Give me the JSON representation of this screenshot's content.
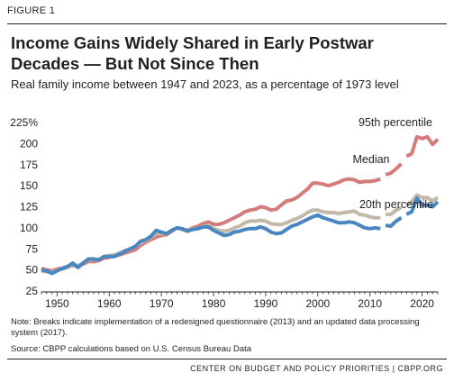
{
  "figure_label": "FIGURE 1",
  "title": "Income Gains Widely Shared in Early Postwar Decades — But Not Since Then",
  "subtitle": "Real family income between 1947 and 2023, as a percentage of 1973 level",
  "note": "Note: Breaks indicate implementation of a redesigned questionnaire (2013) and an updated data processing system (2017).",
  "source": "Source: CBPP calculations based on U.S. Census Bureau Data",
  "footer": "CENTER ON BUDGET AND POLICY PRIORITIES | CBPP.ORG",
  "chart_data": {
    "type": "line",
    "title": "Income Gains Widely Shared in Early Postwar Decades — But Not Since Then",
    "subtitle": "Real family income between 1947 and 2023, as a percentage of 1973 level",
    "xlabel": "",
    "ylabel": "",
    "xlim": [
      1947,
      2023
    ],
    "ylim": [
      25,
      225
    ],
    "x_ticks": [
      1950,
      1960,
      1970,
      1980,
      1990,
      2000,
      2010,
      2020
    ],
    "x_tick_labels": [
      "1950",
      "1960",
      "1970",
      "1980",
      "1990",
      "2000",
      "2010",
      "2020"
    ],
    "y_ticks": [
      25,
      50,
      75,
      100,
      125,
      150,
      175,
      200,
      225
    ],
    "y_tick_labels": [
      "25",
      "50",
      "75",
      "100",
      "125",
      "150",
      "175",
      "200",
      "225%"
    ],
    "grid": false,
    "legend": "direct labels",
    "series": [
      {
        "name": "95th percentile",
        "color": "#d47b7b",
        "segments": [
          [
            [
              1947,
              52
            ],
            [
              1948,
              50
            ],
            [
              1949,
              49
            ],
            [
              1950,
              51
            ],
            [
              1951,
              52
            ],
            [
              1952,
              54
            ],
            [
              1953,
              55
            ],
            [
              1954,
              55
            ],
            [
              1955,
              57
            ],
            [
              1956,
              60
            ],
            [
              1957,
              60
            ],
            [
              1958,
              61
            ],
            [
              1959,
              64
            ],
            [
              1960,
              65
            ],
            [
              1961,
              67
            ],
            [
              1962,
              68
            ],
            [
              1963,
              70
            ],
            [
              1964,
              72
            ],
            [
              1965,
              74
            ],
            [
              1966,
              79
            ],
            [
              1967,
              83
            ],
            [
              1968,
              86
            ],
            [
              1969,
              89
            ],
            [
              1970,
              91
            ],
            [
              1971,
              92
            ],
            [
              1972,
              96
            ],
            [
              1973,
              100
            ],
            [
              1974,
              98
            ],
            [
              1975,
              97
            ],
            [
              1976,
              100
            ],
            [
              1977,
              102
            ],
            [
              1978,
              105
            ],
            [
              1979,
              107
            ],
            [
              1980,
              104
            ],
            [
              1981,
              104
            ],
            [
              1982,
              106
            ],
            [
              1983,
              109
            ],
            [
              1984,
              112
            ],
            [
              1985,
              115
            ],
            [
              1986,
              119
            ],
            [
              1987,
              121
            ],
            [
              1988,
              122
            ],
            [
              1989,
              125
            ],
            [
              1990,
              124
            ],
            [
              1991,
              121
            ],
            [
              1992,
              122
            ],
            [
              1993,
              127
            ],
            [
              1994,
              132
            ],
            [
              1995,
              133
            ],
            [
              1996,
              136
            ],
            [
              1997,
              141
            ],
            [
              1998,
              146
            ],
            [
              1999,
              153
            ],
            [
              2000,
              153
            ],
            [
              2001,
              152
            ],
            [
              2002,
              150
            ],
            [
              2003,
              152
            ],
            [
              2004,
              154
            ],
            [
              2005,
              157
            ],
            [
              2006,
              158
            ],
            [
              2007,
              157
            ],
            [
              2008,
              154
            ],
            [
              2009,
              155
            ],
            [
              2010,
              155
            ],
            [
              2011,
              156
            ],
            [
              2012,
              158
            ]
          ],
          [
            [
              2013,
              163
            ],
            [
              2014,
              165
            ],
            [
              2015,
              170
            ],
            [
              2016,
              176
            ]
          ],
          [
            [
              2017,
              185
            ],
            [
              2018,
              188
            ],
            [
              2019,
              208
            ],
            [
              2020,
              206
            ],
            [
              2021,
              208
            ],
            [
              2022,
              199
            ],
            [
              2023,
              205
            ]
          ]
        ]
      },
      {
        "name": "Median",
        "color": "#c2b9a7",
        "segments": [
          [
            [
              1947,
              49
            ],
            [
              1948,
              48
            ],
            [
              1949,
              47
            ],
            [
              1950,
              50
            ],
            [
              1951,
              51
            ],
            [
              1952,
              53
            ],
            [
              1953,
              56
            ],
            [
              1954,
              55
            ],
            [
              1955,
              58
            ],
            [
              1956,
              62
            ],
            [
              1957,
              62
            ],
            [
              1958,
              62
            ],
            [
              1959,
              66
            ],
            [
              1960,
              67
            ],
            [
              1961,
              68
            ],
            [
              1962,
              70
            ],
            [
              1963,
              73
            ],
            [
              1964,
              75
            ],
            [
              1965,
              78
            ],
            [
              1966,
              82
            ],
            [
              1967,
              85
            ],
            [
              1968,
              89
            ],
            [
              1969,
              93
            ],
            [
              1970,
              93
            ],
            [
              1971,
              93
            ],
            [
              1972,
              97
            ],
            [
              1973,
              100
            ],
            [
              1974,
              98
            ],
            [
              1975,
              96
            ],
            [
              1976,
              99
            ],
            [
              1977,
              99
            ],
            [
              1978,
              102
            ],
            [
              1979,
              102
            ],
            [
              1980,
              99
            ],
            [
              1981,
              97
            ],
            [
              1982,
              96
            ],
            [
              1983,
              97
            ],
            [
              1984,
              100
            ],
            [
              1985,
              102
            ],
            [
              1986,
              106
            ],
            [
              1987,
              108
            ],
            [
              1988,
              108
            ],
            [
              1989,
              109
            ],
            [
              1990,
              108
            ],
            [
              1991,
              105
            ],
            [
              1992,
              104
            ],
            [
              1993,
              104
            ],
            [
              1994,
              106
            ],
            [
              1995,
              109
            ],
            [
              1996,
              111
            ],
            [
              1997,
              114
            ],
            [
              1998,
              118
            ],
            [
              1999,
              121
            ],
            [
              2000,
              121
            ],
            [
              2001,
              119
            ],
            [
              2002,
              118
            ],
            [
              2003,
              118
            ],
            [
              2004,
              117
            ],
            [
              2005,
              118
            ],
            [
              2006,
              119
            ],
            [
              2007,
              120
            ],
            [
              2008,
              116
            ],
            [
              2009,
              115
            ],
            [
              2010,
              113
            ],
            [
              2011,
              112
            ],
            [
              2012,
              112
            ]
          ],
          [
            [
              2013,
              116
            ],
            [
              2014,
              116
            ],
            [
              2015,
              121
            ],
            [
              2016,
              124
            ]
          ],
          [
            [
              2017,
              127
            ],
            [
              2018,
              131
            ],
            [
              2019,
              139
            ],
            [
              2020,
              136
            ],
            [
              2021,
              136
            ],
            [
              2022,
              132
            ],
            [
              2023,
              136
            ]
          ]
        ]
      },
      {
        "name": "20th percentile",
        "color": "#4a86c0",
        "segments": [
          [
            [
              1947,
              50
            ],
            [
              1948,
              49
            ],
            [
              1949,
              46
            ],
            [
              1950,
              49
            ],
            [
              1951,
              52
            ],
            [
              1952,
              54
            ],
            [
              1953,
              58
            ],
            [
              1954,
              53
            ],
            [
              1955,
              58
            ],
            [
              1956,
              63
            ],
            [
              1957,
              63
            ],
            [
              1958,
              62
            ],
            [
              1959,
              66
            ],
            [
              1960,
              66
            ],
            [
              1961,
              66
            ],
            [
              1962,
              69
            ],
            [
              1963,
              72
            ],
            [
              1964,
              75
            ],
            [
              1965,
              78
            ],
            [
              1966,
              84
            ],
            [
              1967,
              86
            ],
            [
              1968,
              90
            ],
            [
              1969,
              97
            ],
            [
              1970,
              95
            ],
            [
              1971,
              93
            ],
            [
              1972,
              97
            ],
            [
              1973,
              100
            ],
            [
              1974,
              99
            ],
            [
              1975,
              96
            ],
            [
              1976,
              98
            ],
            [
              1977,
              99
            ],
            [
              1978,
              101
            ],
            [
              1979,
              101
            ],
            [
              1980,
              97
            ],
            [
              1981,
              94
            ],
            [
              1982,
              91
            ],
            [
              1983,
              92
            ],
            [
              1984,
              95
            ],
            [
              1985,
              96
            ],
            [
              1986,
              98
            ],
            [
              1987,
              99
            ],
            [
              1988,
              99
            ],
            [
              1989,
              101
            ],
            [
              1990,
              99
            ],
            [
              1991,
              95
            ],
            [
              1992,
              93
            ],
            [
              1993,
              94
            ],
            [
              1994,
              98
            ],
            [
              1995,
              102
            ],
            [
              1996,
              104
            ],
            [
              1997,
              107
            ],
            [
              1998,
              110
            ],
            [
              1999,
              113
            ],
            [
              2000,
              115
            ],
            [
              2001,
              112
            ],
            [
              2002,
              110
            ],
            [
              2003,
              108
            ],
            [
              2004,
              106
            ],
            [
              2005,
              106
            ],
            [
              2006,
              107
            ],
            [
              2007,
              106
            ],
            [
              2008,
              103
            ],
            [
              2009,
              100
            ],
            [
              2010,
              99
            ],
            [
              2011,
              100
            ],
            [
              2012,
              99
            ]
          ],
          [
            [
              2013,
              103
            ],
            [
              2014,
              102
            ],
            [
              2015,
              108
            ],
            [
              2016,
              112
            ]
          ],
          [
            [
              2017,
              116
            ],
            [
              2018,
              119
            ],
            [
              2019,
              135
            ],
            [
              2020,
              127
            ],
            [
              2021,
              127
            ],
            [
              2022,
              125
            ],
            [
              2023,
              131
            ]
          ]
        ]
      }
    ],
    "annotations": [
      {
        "text": "95th percentile",
        "series": "95th percentile"
      },
      {
        "text": "Median",
        "series": "Median"
      },
      {
        "text": "20th percentile",
        "series": "20th percentile"
      }
    ]
  }
}
